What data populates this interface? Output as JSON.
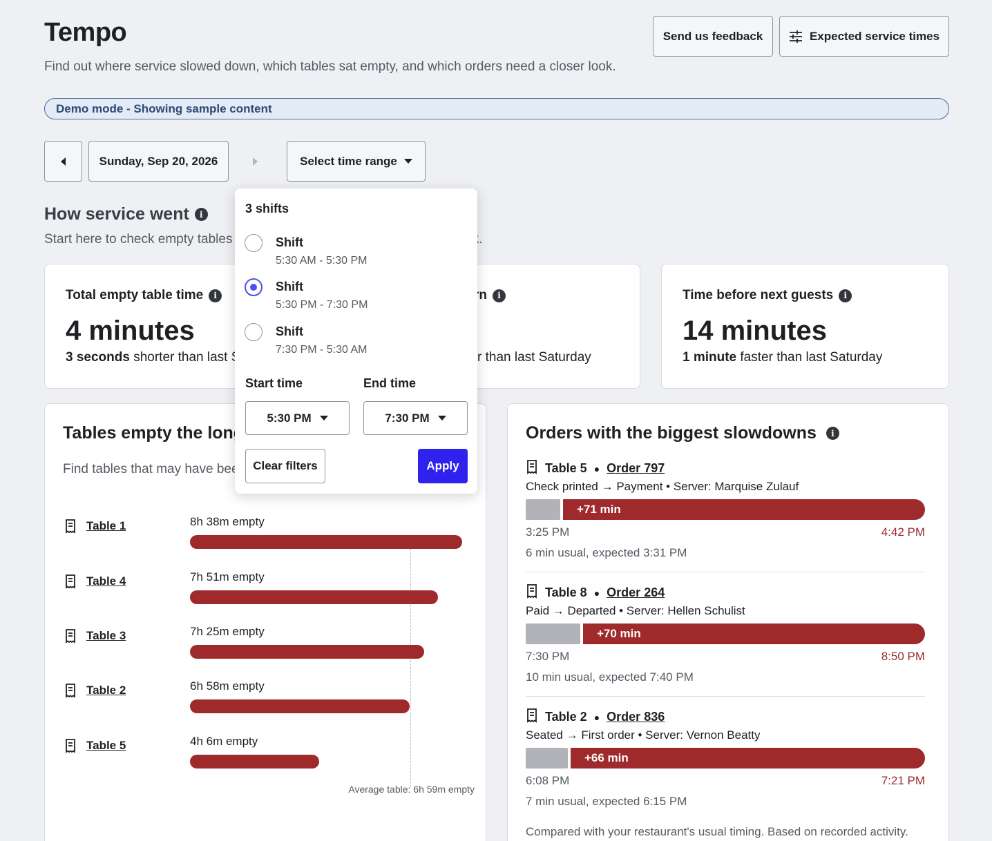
{
  "app": {
    "title": "Tempo",
    "subtitle": "Find out where service slowed down, which tables sat empty, and which orders need a closer look."
  },
  "header_buttons": {
    "feedback": "Send us feedback",
    "service_times": "Expected service times"
  },
  "demo_banner": "Demo mode - Showing sample content",
  "date_nav": {
    "date": "Sunday, Sep 20, 2026",
    "time_range": "Select time range"
  },
  "service_section": {
    "title": "How service went",
    "subtitle_left": "Start here to check empty tables",
    "subtitle_right": "ok."
  },
  "stats": [
    {
      "label": "Total empty table time",
      "value": "4 minutes",
      "note_bold": "3 seconds",
      "note_rest": " shorter than last S"
    },
    {
      "label": "rn",
      "value": "",
      "note_bold": "",
      "note_rest": "r than last Saturday"
    },
    {
      "label": "Time before next guests",
      "value": "14 minutes",
      "note_bold": "1 minute",
      "note_rest": " faster than last Saturday"
    }
  ],
  "tables_card": {
    "title": "Tables empty the longe",
    "description": "Find tables that may have bee reset.",
    "rows": [
      {
        "name": "Table 1",
        "empty_label": "8h 38m empty",
        "hours": 8.633
      },
      {
        "name": "Table 4",
        "empty_label": "7h 51m empty",
        "hours": 7.85
      },
      {
        "name": "Table 3",
        "empty_label": "7h 25m empty",
        "hours": 7.417
      },
      {
        "name": "Table 2",
        "empty_label": "6h 58m empty",
        "hours": 6.967
      },
      {
        "name": "Table 5",
        "empty_label": "4h 6m empty",
        "hours": 4.1
      }
    ],
    "average_label": "Average table: 6h 59m empty",
    "average_hours": 6.983
  },
  "orders_card": {
    "title": "Orders with the biggest slowdowns",
    "orders": [
      {
        "table": "Table 5",
        "order": "Order 797",
        "path": "Check printed → Payment • Server: Marquise Zulauf",
        "usual_min": 6,
        "delay": "+71 min",
        "delay_min": 71,
        "start": "3:25 PM",
        "end": "4:42 PM",
        "expected": "6 min usual, expected 3:31 PM"
      },
      {
        "table": "Table 8",
        "order": "Order 264",
        "path": "Paid → Departed • Server: Hellen Schulist",
        "usual_min": 10,
        "delay": "+70 min",
        "delay_min": 70,
        "start": "7:30 PM",
        "end": "8:50 PM",
        "expected": "10 min usual, expected 7:40 PM"
      },
      {
        "table": "Table 2",
        "order": "Order 836",
        "path": "Seated → First order • Server: Vernon Beatty",
        "usual_min": 7,
        "delay": "+66 min",
        "delay_min": 66,
        "start": "6:08 PM",
        "end": "7:21 PM",
        "expected": "7 min usual, expected 6:15 PM"
      }
    ],
    "footnote": "Compared with your restaurant's usual timing. Based on recorded activity."
  },
  "time_dropdown": {
    "heading": "3 shifts",
    "shifts": [
      {
        "name": "Shift",
        "time": "5:30 AM - 5:30 PM",
        "selected": false
      },
      {
        "name": "Shift",
        "time": "5:30 PM - 7:30 PM",
        "selected": true
      },
      {
        "name": "Shift",
        "time": "7:30 PM - 5:30 AM",
        "selected": false
      }
    ],
    "start_label": "Start time",
    "end_label": "End time",
    "start_value": "5:30 PM",
    "end_value": "7:30 PM",
    "clear": "Clear filters",
    "apply": "Apply"
  },
  "colors": {
    "accent": "#2f22ee",
    "delay_red": "#9e2a2b",
    "usual_gray": "#b1b3b8",
    "demo_border": "#4a6a94"
  }
}
